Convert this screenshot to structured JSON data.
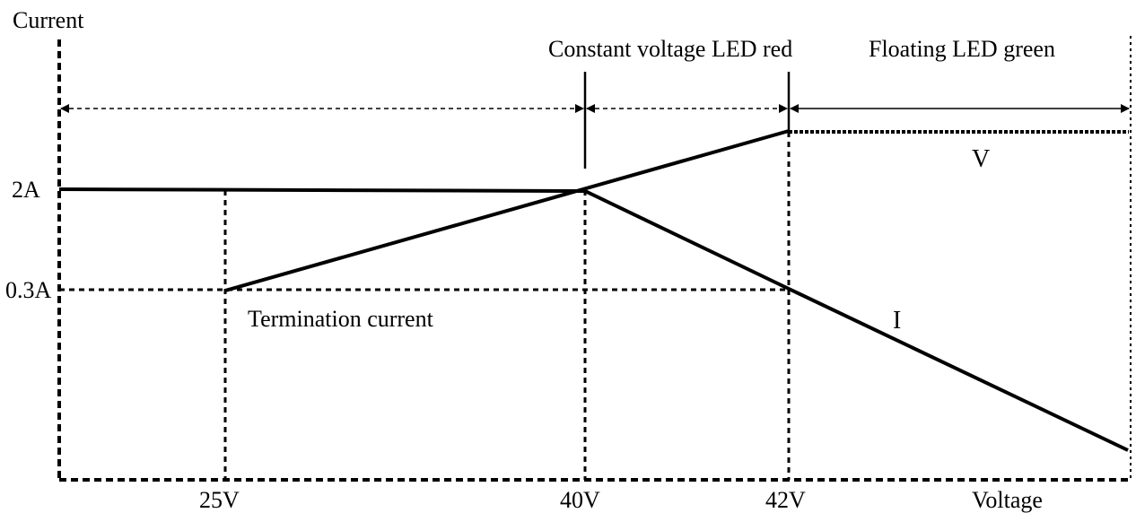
{
  "chart_data": {
    "type": "line",
    "ylabel": "Current",
    "xlabel": "Voltage",
    "y_ticks": [
      "2A",
      "0.3A"
    ],
    "x_ticks": [
      "25V",
      "40V",
      "42V"
    ],
    "phases": [
      {
        "label": "Constant voltage LED red"
      },
      {
        "label": "Floating LED green"
      }
    ],
    "series": [
      {
        "name": "V"
      },
      {
        "name": "I"
      }
    ],
    "annotations": [
      "Termination current"
    ]
  }
}
